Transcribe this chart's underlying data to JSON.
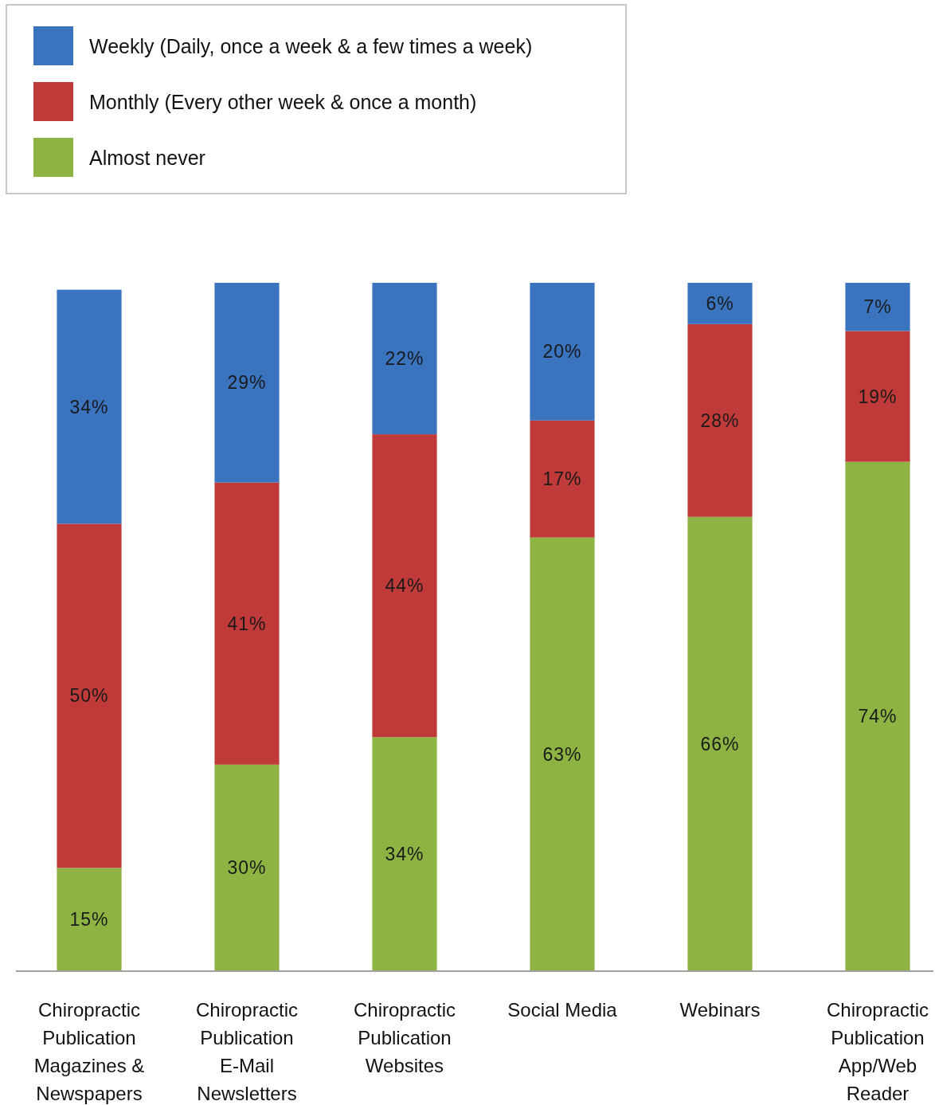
{
  "chart_data": {
    "type": "bar",
    "stacked": true,
    "legend": "top left",
    "tick_labels": "x",
    "ylim": [
      0,
      100
    ],
    "categories": [
      "Chiropractic Publication Magazines & Newspapers",
      "Chiropractic Publication E-Mail Newsletters",
      "Chiropractic Publication Websites",
      "Social Media",
      "Webinars",
      "Chiropractic Publication App/Web Reader"
    ],
    "series": [
      {
        "name": "Almost never",
        "color": "#8db443",
        "values": [
          15,
          30,
          34,
          63,
          66,
          74
        ],
        "value_labels": [
          "15%",
          "30%",
          "34%",
          "63%",
          "66%",
          "74%"
        ]
      },
      {
        "name": "Monthly (Every other week & once a month)",
        "color": "#bf3a38",
        "values": [
          50,
          41,
          44,
          17,
          28,
          19
        ],
        "value_labels": [
          "50%",
          "41%",
          "44%",
          "17%",
          "28%",
          "19%"
        ]
      },
      {
        "name": "Weekly (Daily, once a week & a few times a week)",
        "color": "#3a74bf",
        "values": [
          34,
          29,
          22,
          20,
          6,
          7
        ],
        "value_labels": [
          "34%",
          "29%",
          "22%",
          "20%",
          "6%",
          "7%"
        ]
      }
    ]
  }
}
